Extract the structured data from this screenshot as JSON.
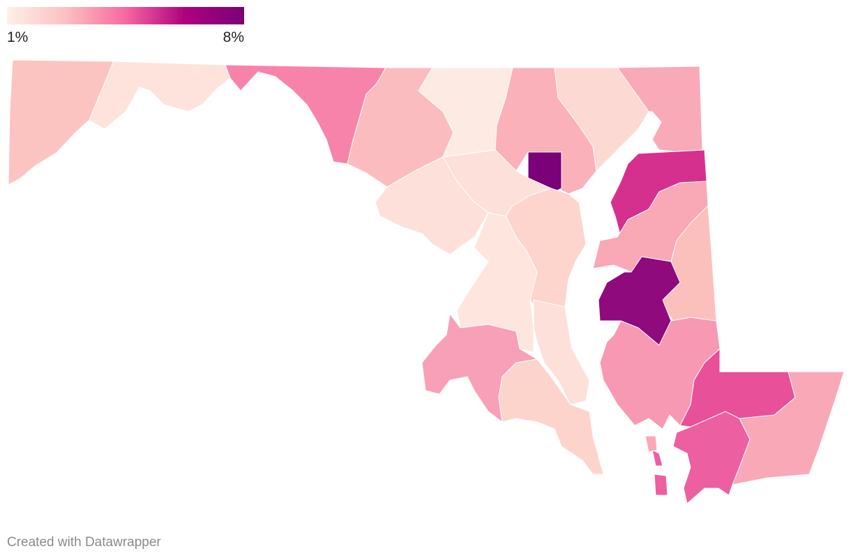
{
  "legend": {
    "ticks": [
      {
        "value": 1,
        "label": "1%"
      },
      {
        "value": 8,
        "label": "8%"
      }
    ],
    "colors": [
      "#fff0e8",
      "#fbc0c0",
      "#f768a1",
      "#ae017e",
      "#7a0177"
    ]
  },
  "footer": "Created with Datawrapper"
}
